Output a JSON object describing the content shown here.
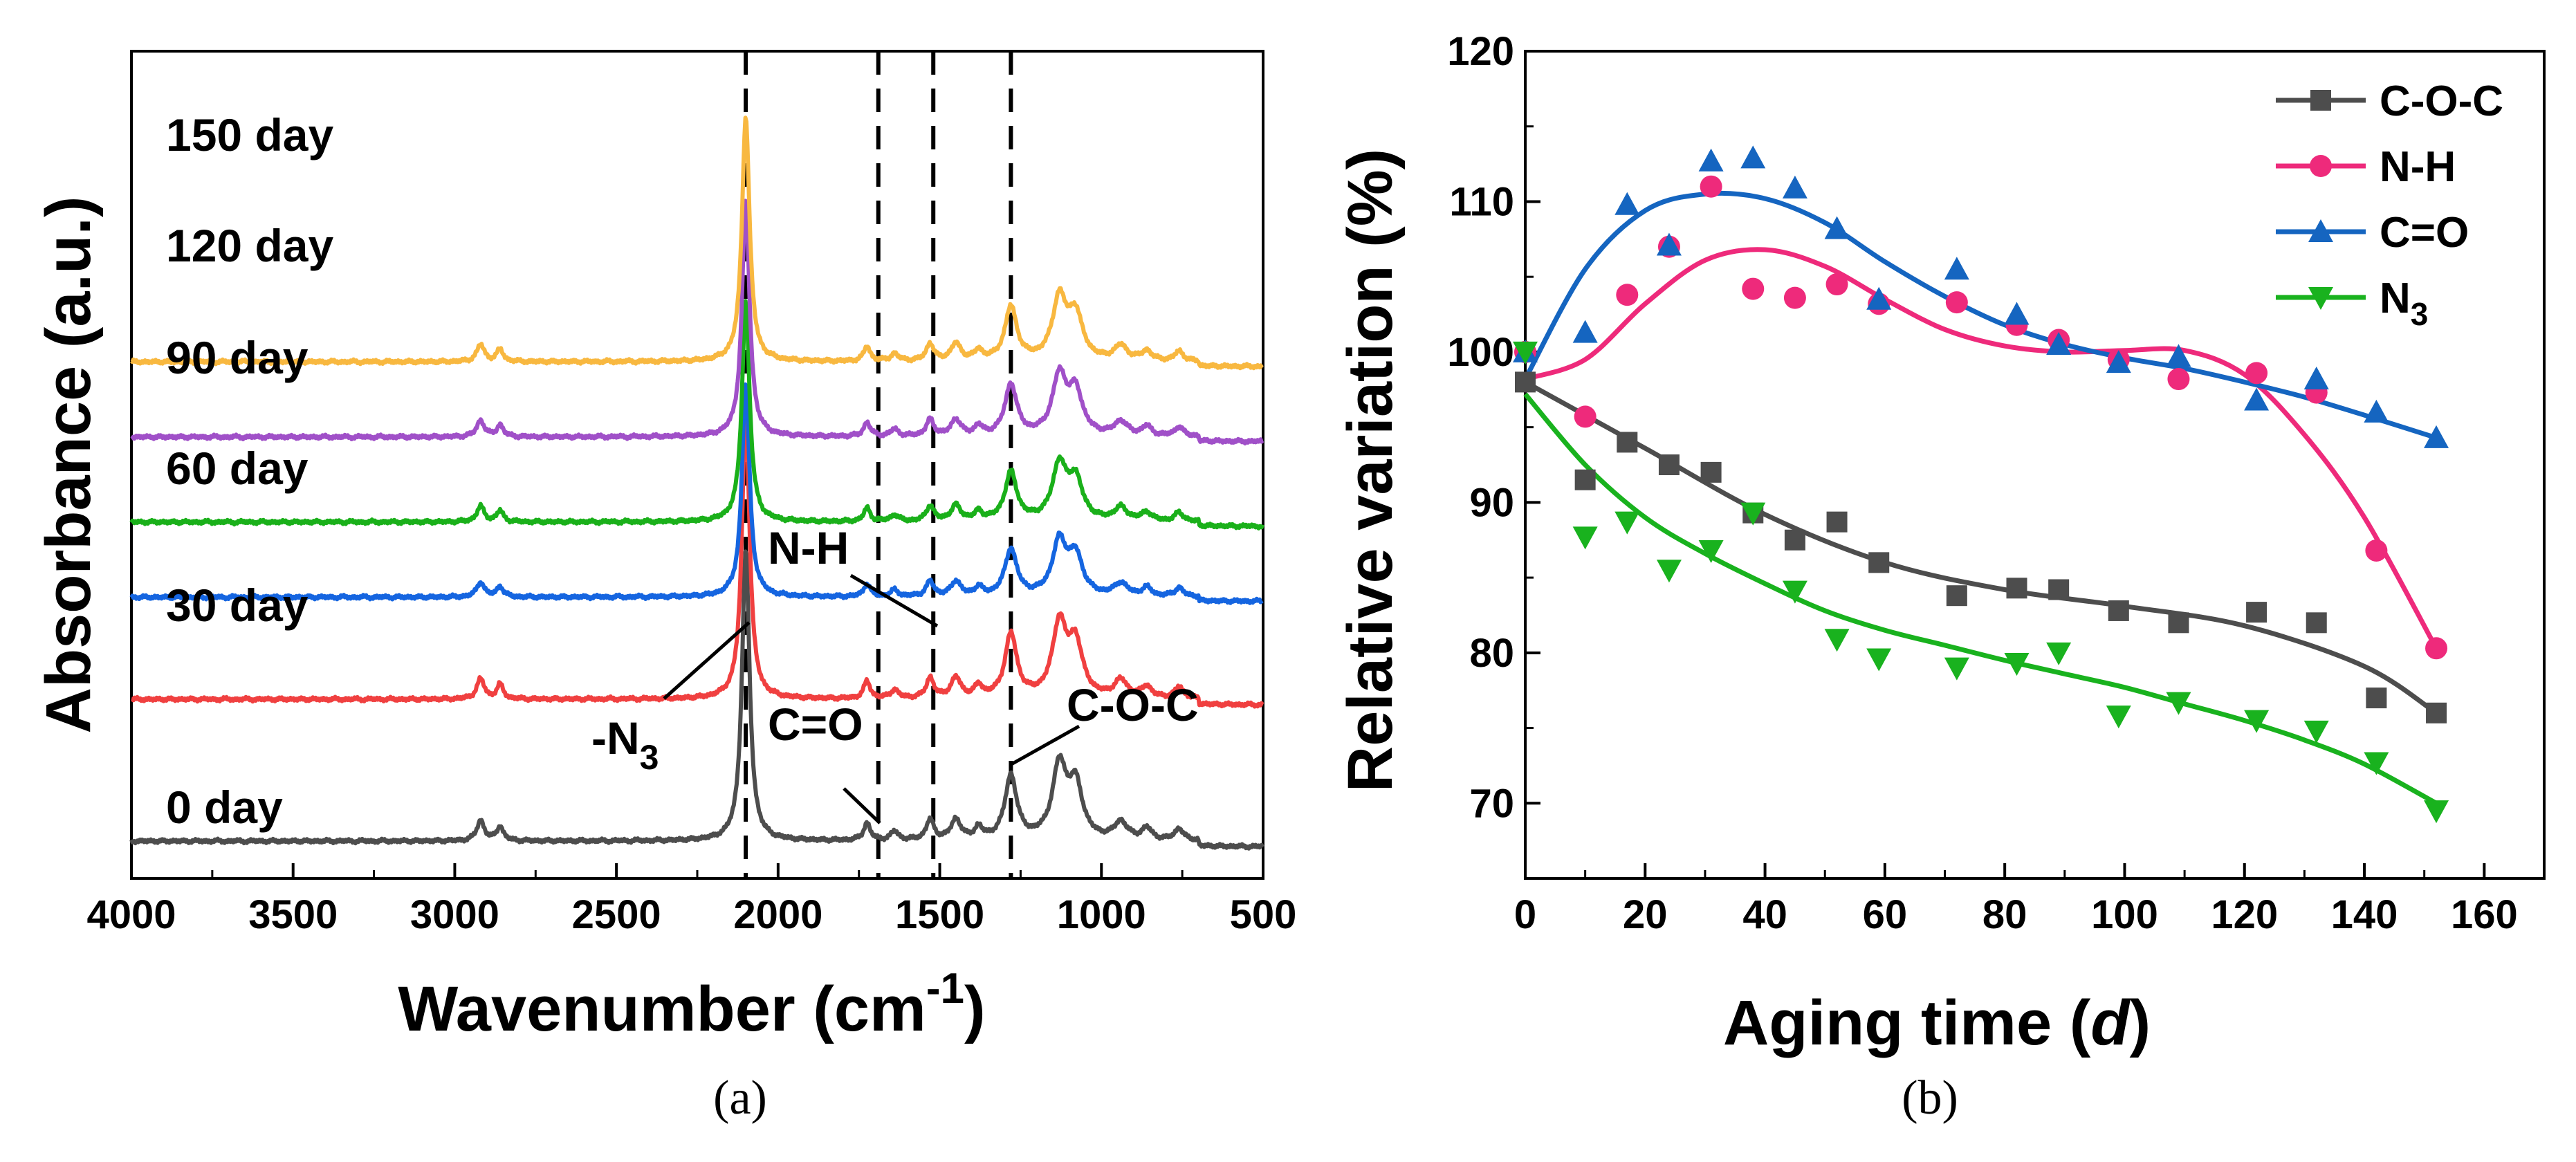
{
  "chart_data": [
    {
      "type": "line",
      "panel_label": "(a)",
      "title": "",
      "xlabel": "Wavenumber (cm",
      "xlabel_sup": "-1",
      "xlabel_close": ")",
      "ylabel": "Absorbance (a.u.)",
      "xlim": [
        4000,
        500
      ],
      "x_ticks": [
        "4000",
        "3500",
        "3000",
        "2500",
        "2000",
        "1500",
        "1000",
        "500"
      ],
      "series": [
        {
          "name": "0 day",
          "color": "#4d4d4d",
          "baseline": 0.0
        },
        {
          "name": "30 day",
          "color": "#f04040",
          "baseline": 1.0
        },
        {
          "name": "60 day",
          "color": "#1565e0",
          "baseline": 1.72
        },
        {
          "name": "90 day",
          "color": "#1ab01a",
          "baseline": 2.25
        },
        {
          "name": "120 day",
          "color": "#a050c8",
          "baseline": 2.85
        },
        {
          "name": "150 day",
          "color": "#f8b840",
          "baseline": 3.38
        }
      ],
      "marker_lines_x": [
        1690,
        1520,
        1280
      ],
      "annotations": [
        {
          "text": "-N",
          "sub": "3",
          "at_x": 2100
        },
        {
          "text": "C=O",
          "at_x": 1700
        },
        {
          "text": "N-H",
          "at_x": 1530
        },
        {
          "text": "C-O-C",
          "at_x": 1290
        }
      ]
    },
    {
      "type": "scatter",
      "panel_label": "(b)",
      "title": "",
      "xlabel": "Aging time (",
      "xlabel_italic": "d",
      "xlabel_close": ")",
      "ylabel": "Relative variation (%)",
      "xlim": [
        0,
        170
      ],
      "ylim": [
        65,
        120
      ],
      "x_ticks": [
        "0",
        "20",
        "40",
        "60",
        "80",
        "100",
        "120",
        "140",
        "160"
      ],
      "y_ticks": [
        "70",
        "80",
        "90",
        "100",
        "110",
        "120"
      ],
      "legend_position": "top-right",
      "series": [
        {
          "name": "C-O-C",
          "color": "#4d4d4d",
          "marker": "square",
          "x": [
            0,
            10,
            17,
            24,
            31,
            38,
            45,
            52,
            59,
            72,
            82,
            89,
            99,
            109,
            122,
            132,
            142,
            152
          ],
          "y": [
            98,
            91.5,
            94,
            92.5,
            92,
            89.3,
            87.5,
            88.7,
            86,
            83.8,
            84.3,
            84.2,
            82.8,
            82,
            82.7,
            82,
            77,
            76
          ],
          "fit_x": [
            0,
            20,
            40,
            60,
            80,
            100,
            120,
            140,
            152
          ],
          "fit_y": [
            98,
            93.6,
            89.2,
            86,
            84.2,
            83.1,
            81.8,
            79.1,
            76
          ]
        },
        {
          "name": "N-H",
          "color": "#ee2a7b",
          "marker": "circle",
          "x": [
            0,
            10,
            17,
            24,
            31,
            38,
            45,
            52,
            59,
            72,
            82,
            89,
            99,
            109,
            122,
            132,
            142,
            152
          ],
          "y": [
            100,
            95.7,
            103.8,
            107,
            111,
            104.2,
            103.6,
            104.5,
            103.2,
            103.3,
            101.8,
            100.8,
            99.5,
            98.2,
            98.6,
            97.3,
            86.8,
            80.3
          ],
          "fit_x": [
            0,
            10,
            20,
            30,
            40,
            50,
            60,
            70,
            80,
            90,
            100,
            110,
            120,
            130,
            140,
            152
          ],
          "fit_y": [
            98.2,
            99.5,
            103.2,
            106.1,
            106.8,
            105.7,
            103.5,
            101.5,
            100.4,
            100,
            100.1,
            100.1,
            98.5,
            94.5,
            89,
            80.3
          ]
        },
        {
          "name": "C=O",
          "color": "#1565c0",
          "marker": "triangle-up",
          "x": [
            0,
            10,
            17,
            24,
            31,
            38,
            45,
            52,
            59,
            72,
            82,
            89,
            99,
            109,
            122,
            132,
            142,
            152
          ],
          "y": [
            100,
            101.3,
            109.8,
            107.1,
            112.7,
            112.9,
            110.9,
            108.2,
            103.5,
            105.5,
            102.5,
            100.5,
            99.3,
            99.7,
            96.8,
            98.2,
            96,
            94.3
          ],
          "fit_x": [
            0,
            10,
            20,
            30,
            40,
            50,
            60,
            70,
            80,
            90,
            100,
            110,
            120,
            130,
            140,
            152
          ],
          "fit_y": [
            98.2,
            105.5,
            109.4,
            110.5,
            110.2,
            108.6,
            106,
            103.7,
            101.8,
            100.5,
            99.6,
            98.9,
            98,
            97,
            95.8,
            94.3
          ]
        },
        {
          "name": "N3",
          "name_base": "N",
          "name_sub": "3",
          "color": "#19b21e",
          "marker": "triangle-down",
          "x": [
            0,
            10,
            17,
            24,
            31,
            38,
            45,
            52,
            59,
            72,
            82,
            89,
            99,
            109,
            122,
            132,
            142,
            152
          ],
          "y": [
            100,
            87.7,
            88.7,
            85.5,
            86.8,
            89.3,
            84.1,
            80.9,
            79.6,
            79,
            79.3,
            80,
            75.8,
            76.7,
            75.5,
            74.8,
            72.7,
            69.5
          ],
          "fit_x": [
            0,
            10,
            20,
            30,
            40,
            50,
            60,
            70,
            80,
            90,
            100,
            110,
            120,
            130,
            140,
            152
          ],
          "fit_y": [
            97.2,
            92.5,
            89,
            86.6,
            84.6,
            82.8,
            81.5,
            80.5,
            79.5,
            78.6,
            77.7,
            76.6,
            75.5,
            74.2,
            72.6,
            70
          ]
        }
      ]
    }
  ]
}
